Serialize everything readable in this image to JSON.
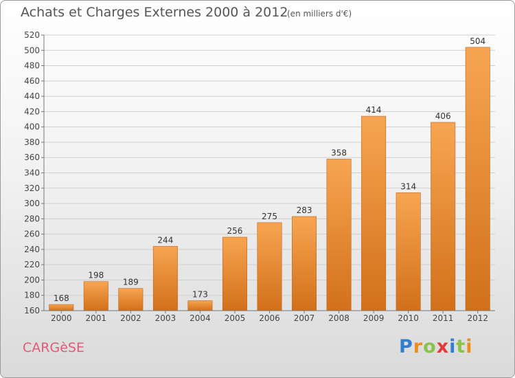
{
  "title": "Achats et Charges Externes 2000 à 2012",
  "subtitle": "(en milliers d'€)",
  "place": "CARGèSE",
  "logo": {
    "text": "Proxiti",
    "colors": [
      "#2f7fd1",
      "#f08c1e",
      "#8bc34a",
      "#e53935",
      "#2f7fd1",
      "#8bc34a",
      "#f08c1e"
    ]
  },
  "chart_data": {
    "type": "bar",
    "title": "Achats et Charges Externes 2000 à 2012",
    "subtitle": "(en milliers d'€)",
    "categories": [
      "2000",
      "2001",
      "2002",
      "2003",
      "2004",
      "2005",
      "2006",
      "2007",
      "2008",
      "2009",
      "2010",
      "2011",
      "2012"
    ],
    "values": [
      168,
      198,
      189,
      244,
      173,
      256,
      275,
      283,
      358,
      414,
      314,
      406,
      504
    ],
    "data_labels": [
      "168",
      "198",
      "189",
      "244",
      "173",
      "256",
      "275",
      "283",
      "358",
      "414",
      "314",
      "406",
      "504"
    ],
    "ylim": [
      160,
      520
    ],
    "yticks": [
      160,
      180,
      200,
      220,
      240,
      260,
      280,
      300,
      320,
      340,
      360,
      380,
      400,
      420,
      440,
      460,
      480,
      500,
      520
    ],
    "ytick_labels": [
      "160",
      "180",
      "200",
      "220",
      "240",
      "260",
      "280",
      "300",
      "320",
      "340",
      "360",
      "380",
      "400",
      "420",
      "440",
      "460",
      "480",
      "500",
      "520"
    ],
    "grid": true,
    "bar_color": "#f0903a",
    "legend": "none"
  }
}
